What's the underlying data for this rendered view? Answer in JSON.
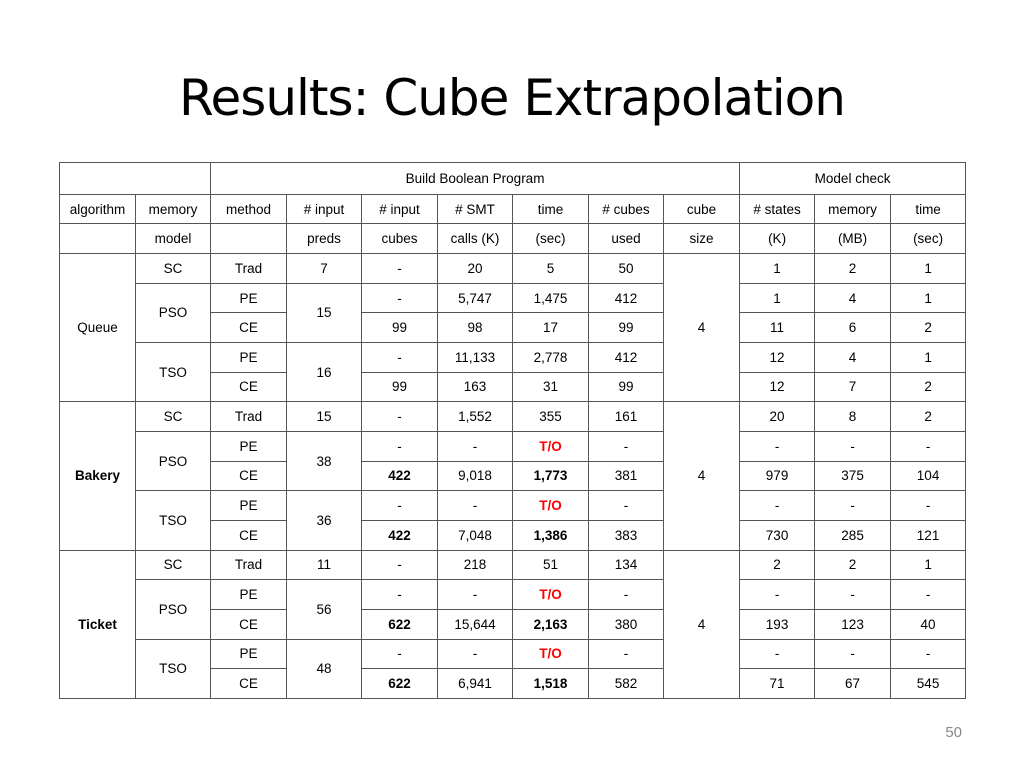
{
  "slide": {
    "title": "Results: Cube Extrapolation",
    "page_number": "50"
  },
  "table": {
    "group_headers": {
      "build": "Build Boolean Program",
      "model": "Model check"
    },
    "header_row1": [
      "algorithm",
      "memory",
      "method",
      "# input",
      "# input",
      "#   SMT",
      "time",
      "# cubes",
      "cube",
      "# states",
      "memory",
      "time"
    ],
    "header_row2": [
      "",
      "model",
      "",
      "preds",
      "cubes",
      "calls (K)",
      "(sec)",
      "used",
      "size",
      "(K)",
      "(MB)",
      "(sec)"
    ],
    "groups": [
      {
        "algorithm": "Queue",
        "cube_size": "4",
        "sc": {
          "memory": "SC",
          "method": "Trad",
          "preds": "7",
          "cubes": "-",
          "smt": "20",
          "time": "5",
          "cubes_used": "50",
          "states": "1",
          "mem_mb": "2",
          "mc_time": "1"
        },
        "pso": {
          "memory": "PSO",
          "preds": "15",
          "pe": {
            "method": "PE",
            "cubes": "-",
            "smt": "5,747",
            "time": "1,475",
            "cubes_used": "412",
            "states": "1",
            "mem_mb": "4",
            "mc_time": "1"
          },
          "ce": {
            "method": "CE",
            "cubes": "99",
            "smt": "98",
            "time": "17",
            "cubes_used": "99",
            "states": "11",
            "mem_mb": "6",
            "mc_time": "2"
          }
        },
        "tso": {
          "memory": "TSO",
          "preds": "16",
          "pe": {
            "method": "PE",
            "cubes": "-",
            "smt": "11,133",
            "time": "2,778",
            "cubes_used": "412",
            "states": "12",
            "mem_mb": "4",
            "mc_time": "1"
          },
          "ce": {
            "method": "CE",
            "cubes": "99",
            "smt": "163",
            "time": "31",
            "cubes_used": "99",
            "states": "12",
            "mem_mb": "7",
            "mc_time": "2"
          }
        }
      },
      {
        "algorithm": "Bakery",
        "cube_size": "4",
        "sc": {
          "memory": "SC",
          "method": "Trad",
          "preds": "15",
          "cubes": "-",
          "smt": "1,552",
          "time": "355",
          "cubes_used": "161",
          "states": "20",
          "mem_mb": "8",
          "mc_time": "2"
        },
        "pso": {
          "memory": "PSO",
          "preds": "38",
          "pe": {
            "method": "PE",
            "cubes": "-",
            "smt": "-",
            "time": "T/O",
            "cubes_used": "-",
            "states": "-",
            "mem_mb": "-",
            "mc_time": "-"
          },
          "ce": {
            "method": "CE",
            "cubes": "422",
            "smt": "9,018",
            "time": "1,773",
            "cubes_used": "381",
            "states": "979",
            "mem_mb": "375",
            "mc_time": "104"
          }
        },
        "tso": {
          "memory": "TSO",
          "preds": "36",
          "pe": {
            "method": "PE",
            "cubes": "-",
            "smt": "-",
            "time": "T/O",
            "cubes_used": "-",
            "states": "-",
            "mem_mb": "-",
            "mc_time": "-"
          },
          "ce": {
            "method": "CE",
            "cubes": "422",
            "smt": "7,048",
            "time": "1,386",
            "cubes_used": "383",
            "states": "730",
            "mem_mb": "285",
            "mc_time": "121"
          }
        }
      },
      {
        "algorithm": "Ticket",
        "cube_size": "4",
        "sc": {
          "memory": "SC",
          "method": "Trad",
          "preds": "11",
          "cubes": "-",
          "smt": "218",
          "time": "51",
          "cubes_used": "134",
          "states": "2",
          "mem_mb": "2",
          "mc_time": "1"
        },
        "pso": {
          "memory": "PSO",
          "preds": "56",
          "pe": {
            "method": "PE",
            "cubes": "-",
            "smt": "-",
            "time": "T/O",
            "cubes_used": "-",
            "states": "-",
            "mem_mb": "-",
            "mc_time": "-"
          },
          "ce": {
            "method": "CE",
            "cubes": "622",
            "smt": "15,644",
            "time": "2,163",
            "cubes_used": "380",
            "states": "193",
            "mem_mb": "123",
            "mc_time": "40"
          }
        },
        "tso": {
          "memory": "TSO",
          "preds": "48",
          "pe": {
            "method": "PE",
            "cubes": "-",
            "smt": "-",
            "time": "T/O",
            "cubes_used": "-",
            "states": "-",
            "mem_mb": "-",
            "mc_time": "-"
          },
          "ce": {
            "method": "CE",
            "cubes": "622",
            "smt": "6,941",
            "time": "1,518",
            "cubes_used": "582",
            "states": "71",
            "mem_mb": "67",
            "mc_time": "545"
          }
        }
      }
    ]
  }
}
